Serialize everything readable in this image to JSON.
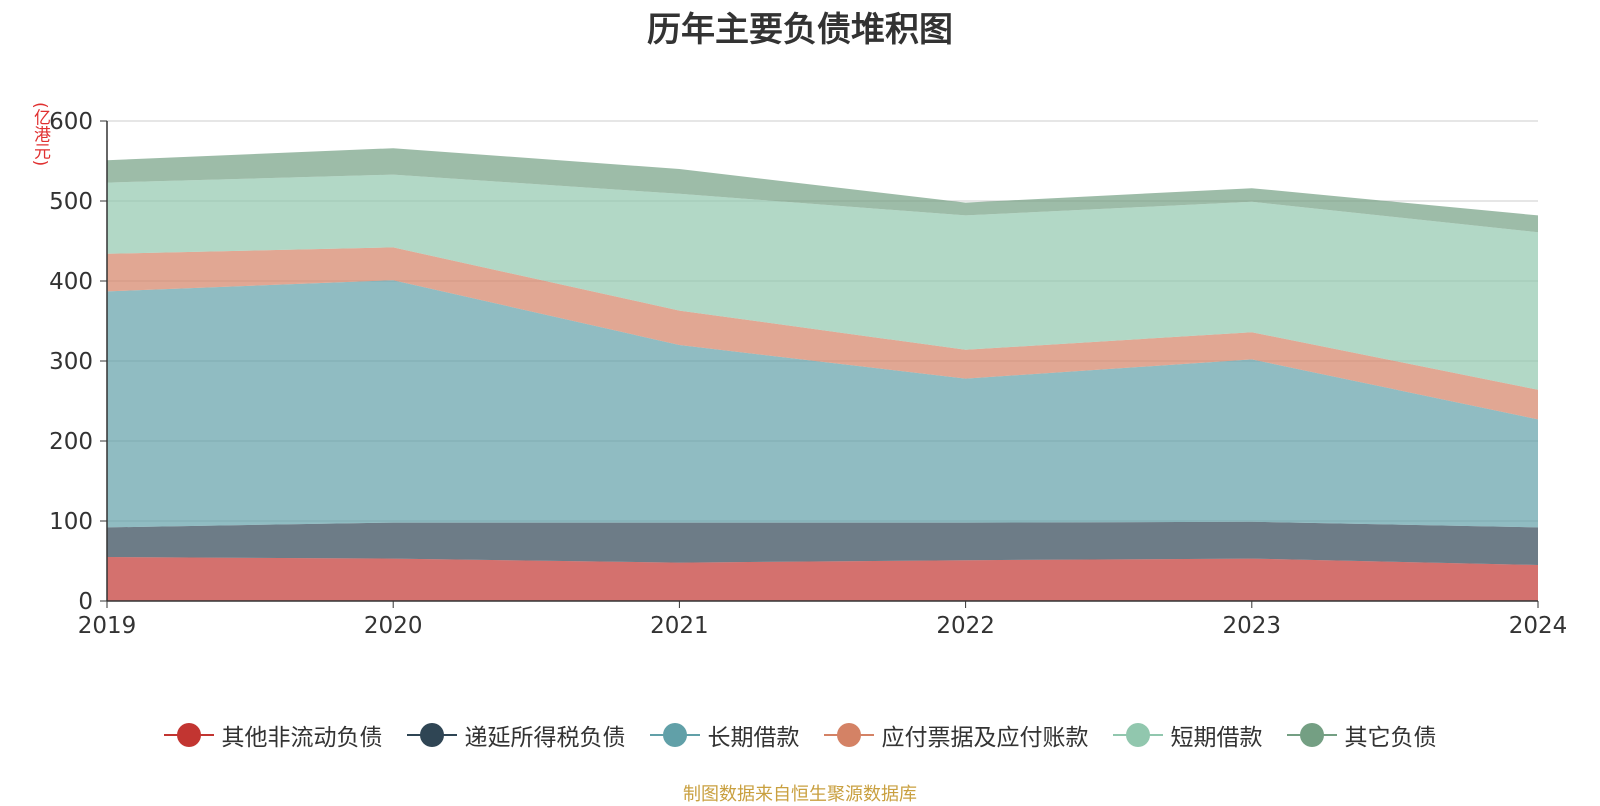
{
  "chart_data": {
    "type": "area",
    "stacked": true,
    "title": "历年主要负债堆积图",
    "y_unit_label": "(亿港元)",
    "x": [
      "2019",
      "2020",
      "2021",
      "2022",
      "2023",
      "2024"
    ],
    "ylim": [
      0,
      600
    ],
    "yticks": [
      "0",
      "100",
      "200",
      "300",
      "400",
      "500",
      "600"
    ],
    "grid": true,
    "legend_position": "bottom",
    "series": [
      {
        "name": "其他非流动负债",
        "color": "#c23531",
        "values": [
          55,
          53,
          48,
          51,
          53,
          45
        ]
      },
      {
        "name": "递延所得税负债",
        "color": "#2f4554",
        "values": [
          37,
          45,
          50,
          47,
          46,
          47
        ]
      },
      {
        "name": "长期借款",
        "color": "#61a0a8",
        "values": [
          295,
          303,
          222,
          180,
          203,
          135
        ]
      },
      {
        "name": "应付票据及应付账款",
        "color": "#d48265",
        "values": [
          47,
          41,
          43,
          36,
          34,
          37
        ]
      },
      {
        "name": "短期借款",
        "color": "#91c7ae",
        "values": [
          89,
          91,
          146,
          168,
          163,
          197
        ]
      },
      {
        "name": "其它负债",
        "color": "#749f83",
        "values": [
          28,
          33,
          31,
          16,
          17,
          21
        ]
      }
    ]
  },
  "source_note": "制图数据来自恒生聚源数据库"
}
